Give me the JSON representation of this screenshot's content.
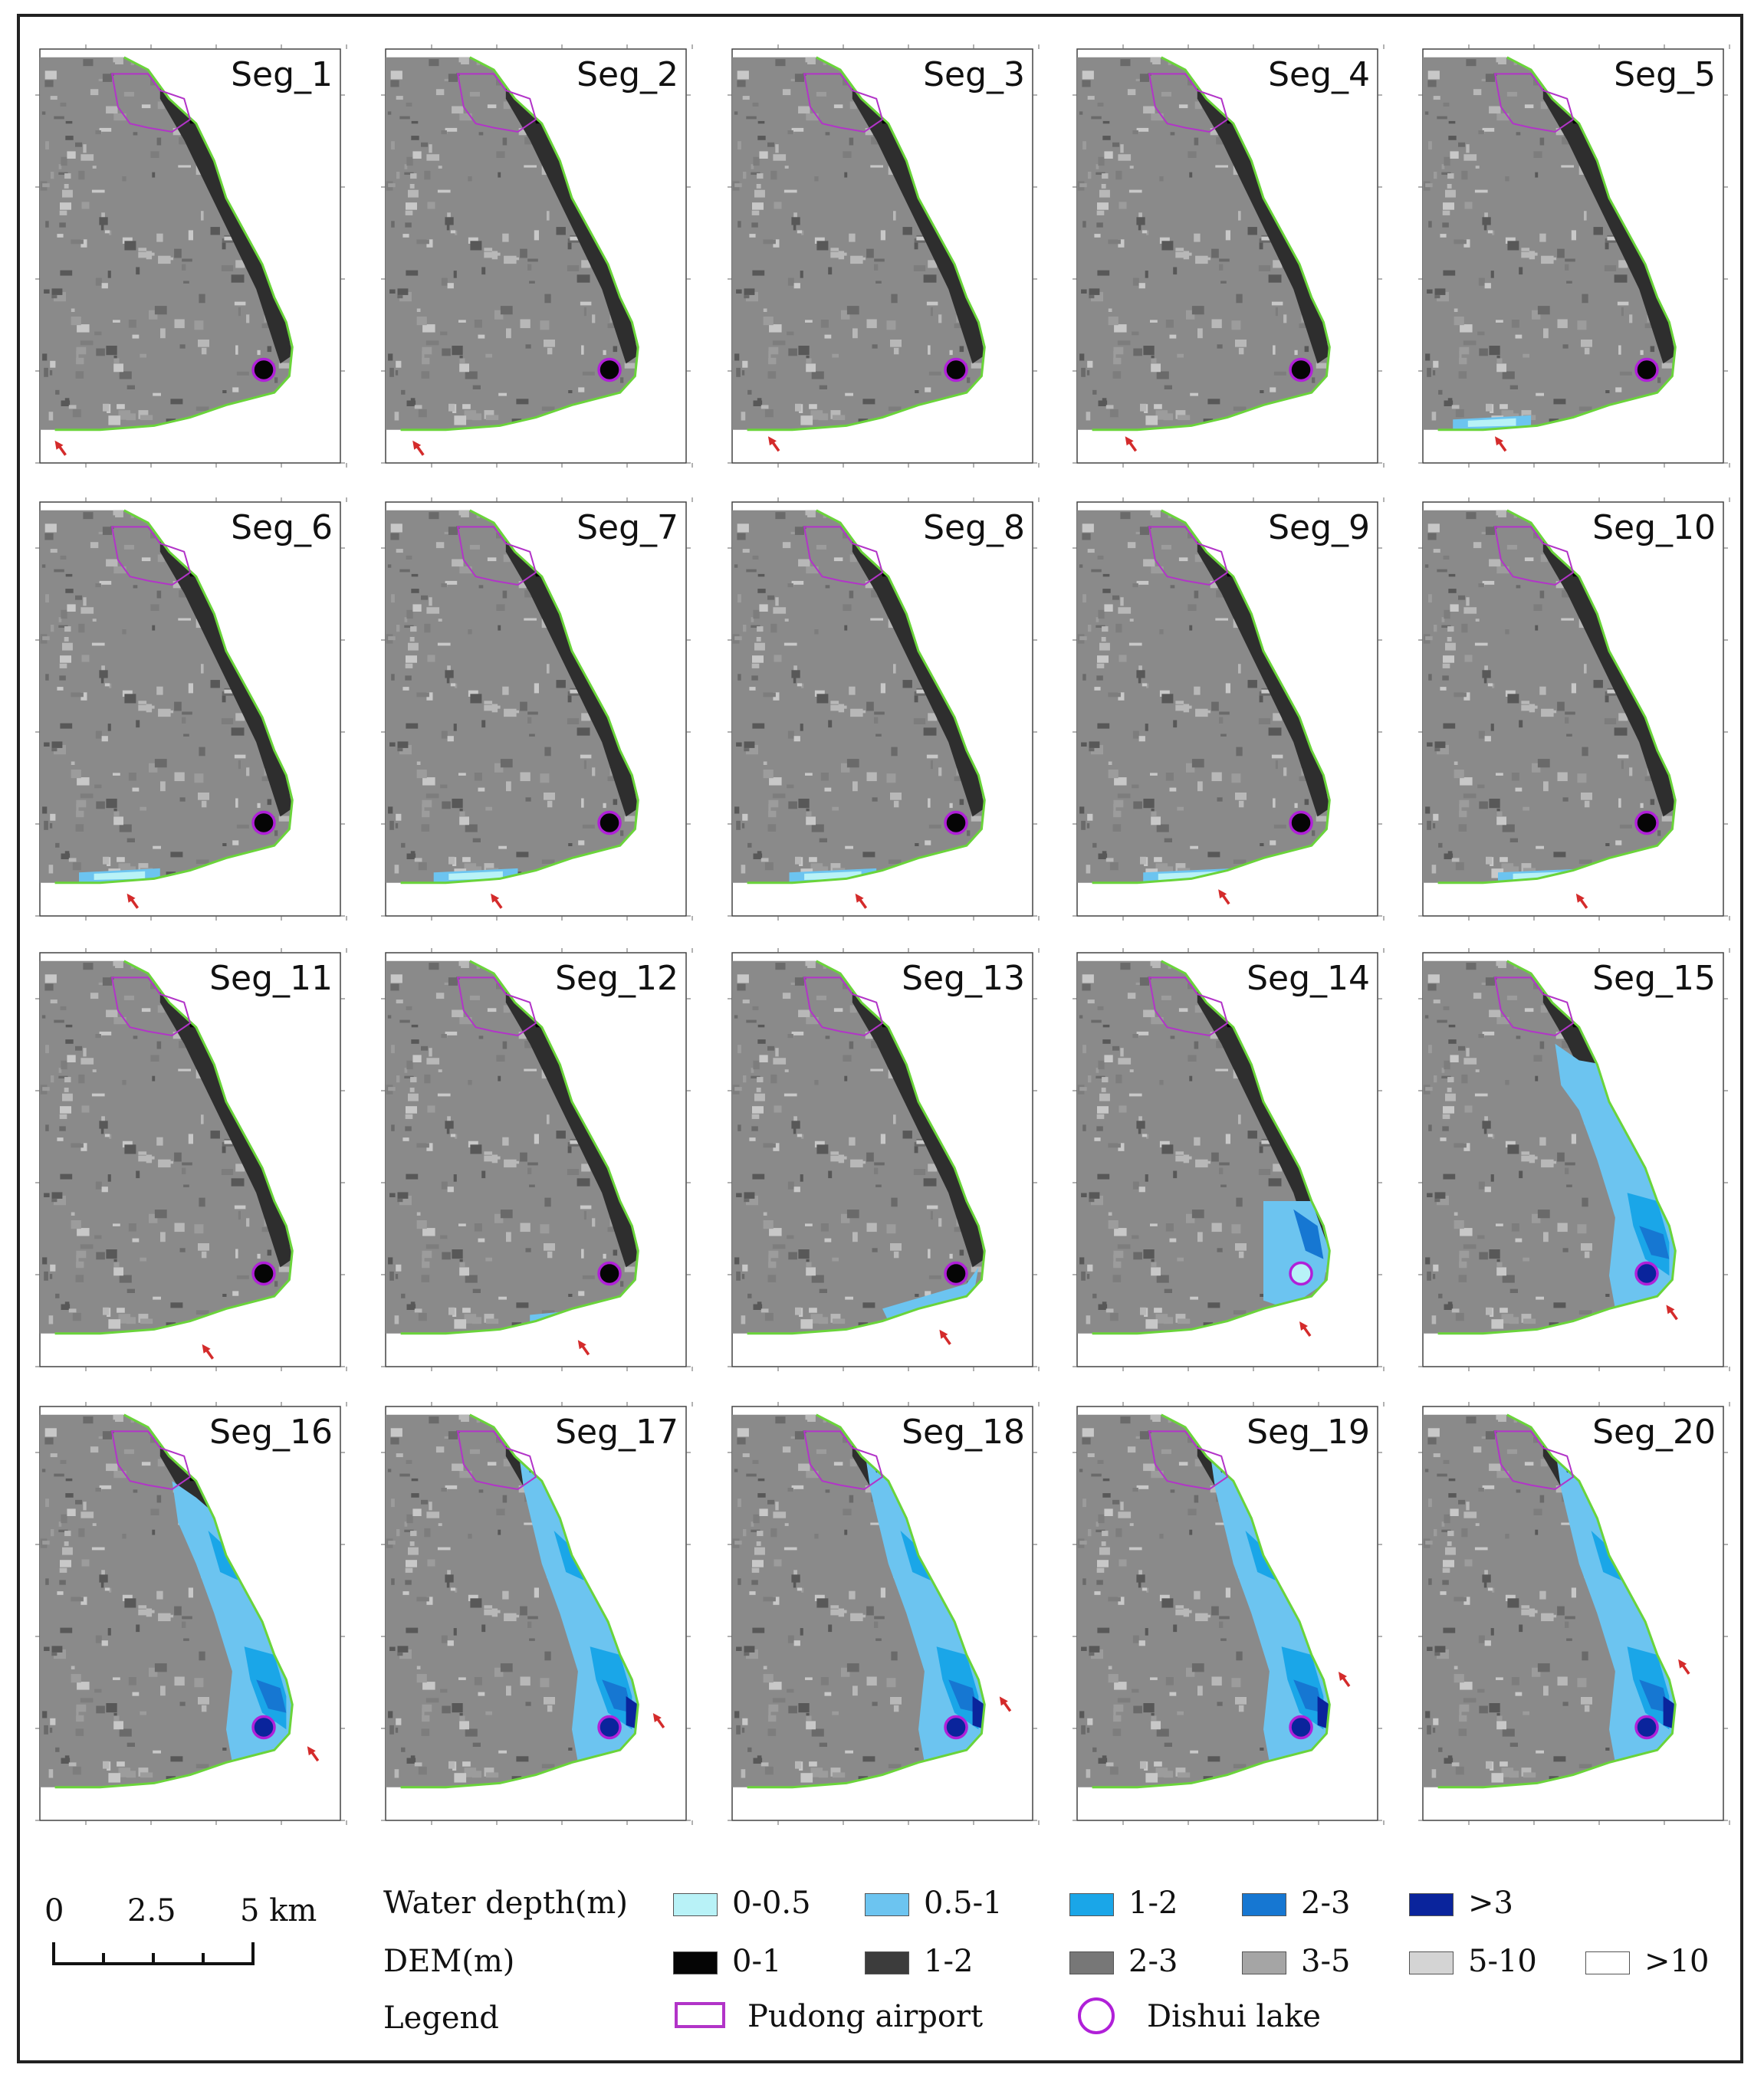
{
  "panels": [
    {
      "label": "Seg_1"
    },
    {
      "label": "Seg_2"
    },
    {
      "label": "Seg_3"
    },
    {
      "label": "Seg_4"
    },
    {
      "label": "Seg_5"
    },
    {
      "label": "Seg_6"
    },
    {
      "label": "Seg_7"
    },
    {
      "label": "Seg_8"
    },
    {
      "label": "Seg_9"
    },
    {
      "label": "Seg_10"
    },
    {
      "label": "Seg_11"
    },
    {
      "label": "Seg_12"
    },
    {
      "label": "Seg_13"
    },
    {
      "label": "Seg_14"
    },
    {
      "label": "Seg_15"
    },
    {
      "label": "Seg_16"
    },
    {
      "label": "Seg_17"
    },
    {
      "label": "Seg_18"
    },
    {
      "label": "Seg_19"
    },
    {
      "label": "Seg_20"
    }
  ],
  "scale_bar": {
    "ticks": [
      "0",
      "2.5",
      "5 km"
    ]
  },
  "legend": {
    "water_depth": {
      "title": "Water depth(m)",
      "classes": [
        {
          "label": "0-0.5",
          "color": "#b8f2f7"
        },
        {
          "label": "0.5-1",
          "color": "#6cc4f0"
        },
        {
          "label": "1-2",
          "color": "#1aa6e8"
        },
        {
          "label": "2-3",
          "color": "#1677d2"
        },
        {
          "label": ">3",
          "color": "#0a249c"
        }
      ]
    },
    "dem": {
      "title": "DEM(m)",
      "classes": [
        {
          "label": "0-1",
          "color": "#050505"
        },
        {
          "label": "1-2",
          "color": "#3c3c3c"
        },
        {
          "label": "2-3",
          "color": "#777777"
        },
        {
          "label": "3-5",
          "color": "#a5a5a5"
        },
        {
          "label": "5-10",
          "color": "#d4d4d4"
        },
        {
          "label": ">10",
          "color": "#ffffff"
        }
      ]
    },
    "features": {
      "title": "Legend",
      "airport_label": "Pudong airport",
      "lake_label": "Dishui lake",
      "airport_color": "#b234c8",
      "lake_color": "#b020d8"
    }
  }
}
